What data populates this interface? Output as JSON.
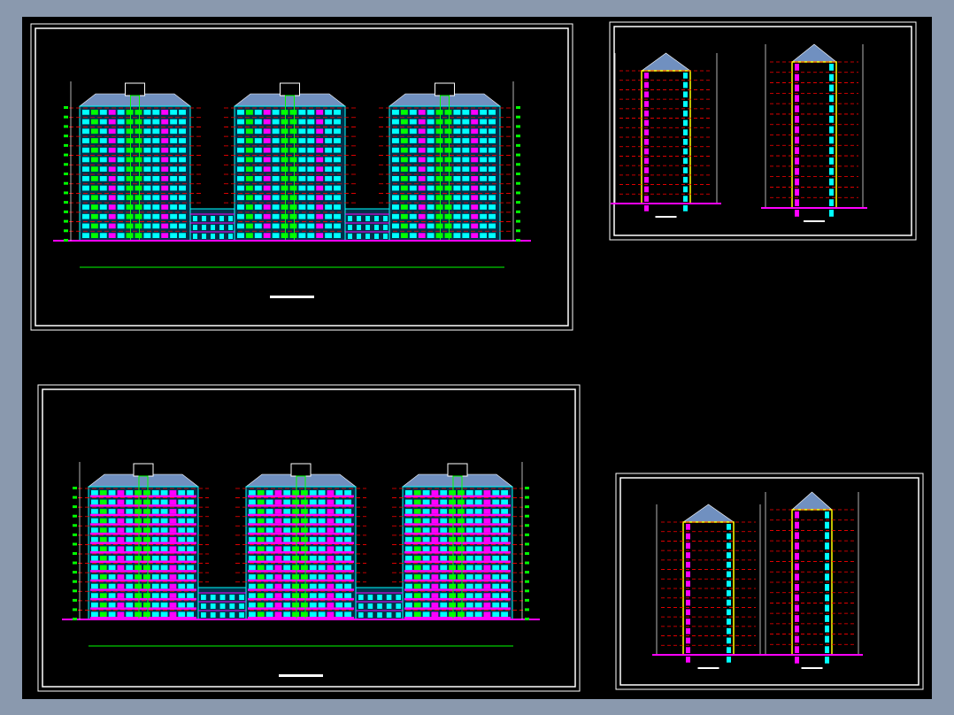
{
  "colors": {
    "background": "#8a99ae",
    "canvas": "#000000",
    "frame": "#ffffff",
    "wall": "#00ffff",
    "window": "#00ff00",
    "band": "#ff00ff",
    "floor_line": "#ff0000",
    "roof": "#7090c0",
    "glass": "#0000ff",
    "section_wall": "#ffff00"
  },
  "sheets": [
    {
      "kind": "elevation",
      "floors": 14
    },
    {
      "kind": "section",
      "floors": 14
    },
    {
      "kind": "elevation",
      "floors": 14
    },
    {
      "kind": "section",
      "floors": 14
    }
  ]
}
